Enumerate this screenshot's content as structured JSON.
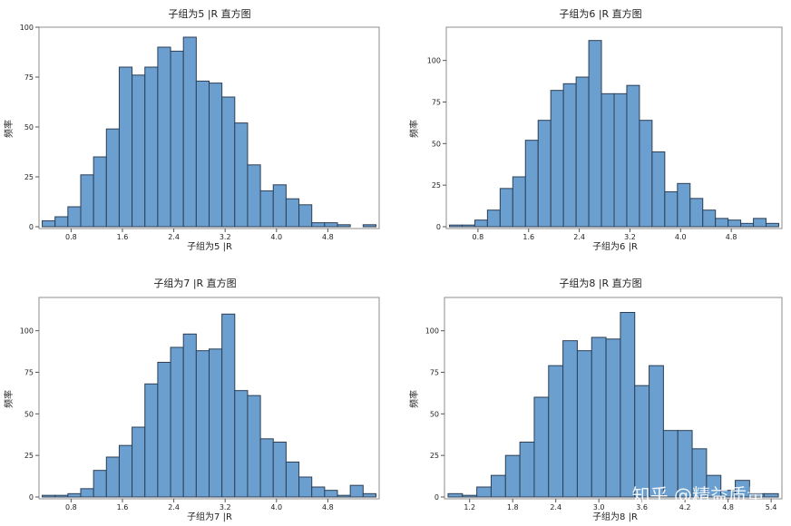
{
  "watermark": "知乎 @精益质量",
  "chart_data": [
    {
      "type": "bar",
      "title": "子组为5 |R 直方图",
      "xlabel": "子组为5 |R",
      "ylabel": "频率",
      "bin_start": 0.35,
      "bin_width": 0.2,
      "xlim": [
        0.3,
        5.6
      ],
      "ylim": [
        0,
        100
      ],
      "xticks": [
        0.8,
        1.6,
        2.4,
        3.2,
        4.0,
        4.8
      ],
      "xtick_labels": [
        "0.8",
        "1.6",
        "2.4",
        "3.2",
        "4.0",
        "4.8"
      ],
      "yticks": [
        0,
        25,
        50,
        75,
        100
      ],
      "values": [
        3,
        5,
        10,
        26,
        35,
        49,
        80,
        76,
        80,
        90,
        88,
        95,
        73,
        72,
        65,
        52,
        31,
        18,
        21,
        14,
        11,
        2,
        2,
        1,
        0,
        1
      ]
    },
    {
      "type": "bar",
      "title": "子组为6 |R 直方图",
      "xlabel": "子组为6 |R",
      "ylabel": "频率",
      "bin_start": 0.35,
      "bin_width": 0.2,
      "xlim": [
        0.3,
        5.6
      ],
      "ylim": [
        0,
        120
      ],
      "xticks": [
        0.8,
        1.6,
        2.4,
        3.2,
        4.0,
        4.8
      ],
      "xtick_labels": [
        "0.8",
        "1.6",
        "2.4",
        "3.2",
        "4.0",
        "4.8"
      ],
      "yticks": [
        0,
        25,
        50,
        75,
        100
      ],
      "values": [
        1,
        1,
        4,
        10,
        23,
        30,
        52,
        64,
        82,
        86,
        90,
        112,
        80,
        80,
        85,
        64,
        45,
        21,
        26,
        17,
        10,
        5,
        4,
        2,
        5,
        2
      ]
    },
    {
      "type": "bar",
      "title": "子组为7 |R 直方图",
      "xlabel": "子组为7 |R",
      "ylabel": "频率",
      "bin_start": 0.35,
      "bin_width": 0.2,
      "xlim": [
        0.3,
        5.6
      ],
      "ylim": [
        0,
        120
      ],
      "xticks": [
        0.8,
        1.6,
        2.4,
        3.2,
        4.0,
        4.8
      ],
      "xtick_labels": [
        "0.8",
        "1.6",
        "2.4",
        "3.2",
        "4.0",
        "4.8"
      ],
      "yticks": [
        0,
        25,
        50,
        75,
        100
      ],
      "values": [
        1,
        1,
        2,
        5,
        16,
        24,
        31,
        42,
        68,
        81,
        90,
        98,
        88,
        89,
        110,
        64,
        61,
        35,
        33,
        21,
        12,
        6,
        4,
        1,
        7,
        2
      ]
    },
    {
      "type": "bar",
      "title": "子组为8 |R 直方图",
      "xlabel": "子组为8 |R",
      "ylabel": "频率",
      "bin_start": 0.9,
      "bin_width": 0.2,
      "xlim": [
        0.85,
        5.55
      ],
      "ylim": [
        0,
        120
      ],
      "xticks": [
        1.2,
        1.8,
        2.4,
        3.0,
        3.6,
        4.2,
        4.8,
        5.4
      ],
      "xtick_labels": [
        "1.2",
        "1.8",
        "2.4",
        "3.0",
        "3.6",
        "4.2",
        "4.8",
        "5.4"
      ],
      "yticks": [
        0,
        25,
        50,
        75,
        100
      ],
      "values": [
        2,
        1,
        6,
        13,
        25,
        33,
        60,
        79,
        94,
        88,
        96,
        95,
        111,
        67,
        79,
        40,
        40,
        29,
        13,
        4,
        10,
        2,
        2
      ]
    }
  ]
}
